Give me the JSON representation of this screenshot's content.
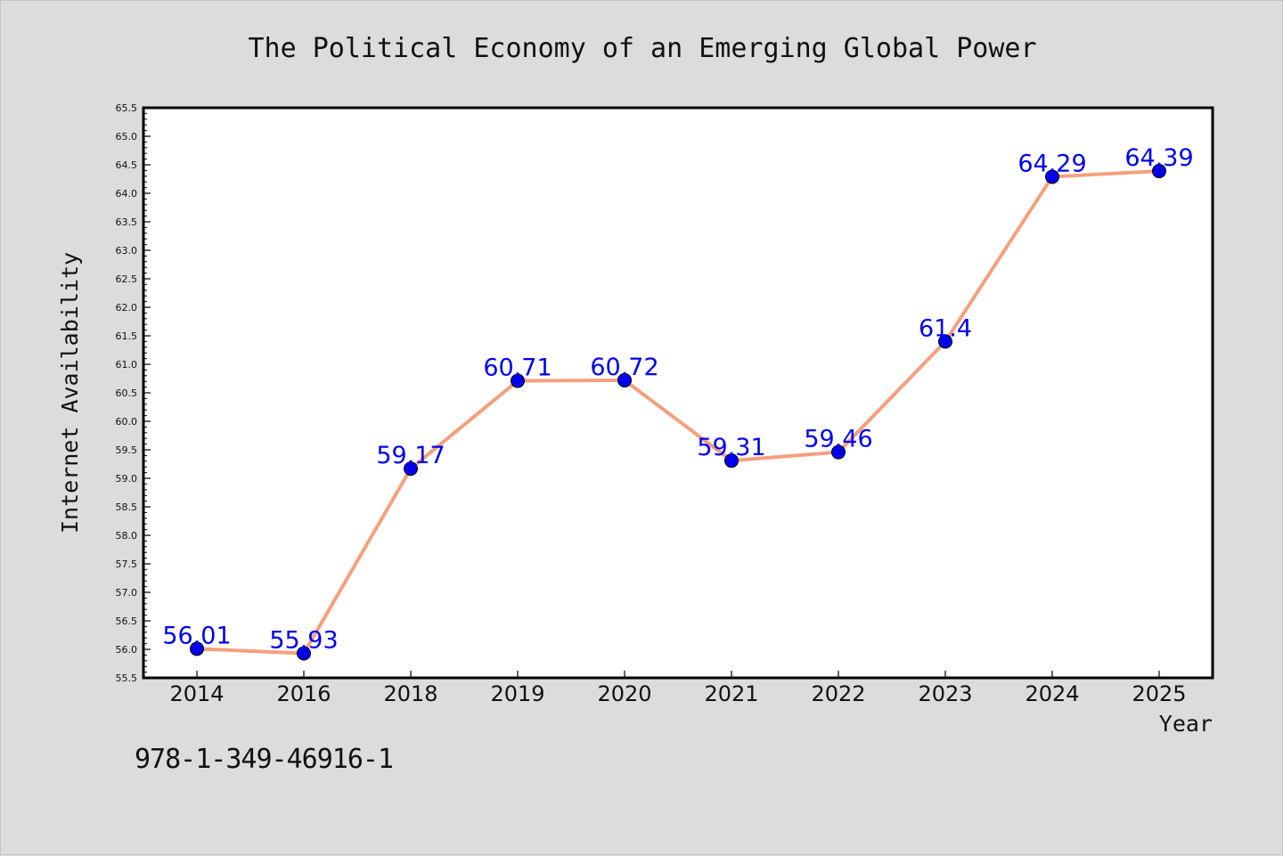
{
  "chart_data": {
    "type": "line",
    "title": "The Political Economy of an Emerging Global Power",
    "xlabel": "Year",
    "ylabel": "Internet Availability",
    "categories": [
      "2014",
      "2016",
      "2018",
      "2019",
      "2020",
      "2021",
      "2022",
      "2023",
      "2024",
      "2025"
    ],
    "series": [
      {
        "values": [
          56.01,
          55.93,
          59.17,
          60.71,
          60.72,
          59.31,
          59.46,
          61.4,
          64.29,
          64.39
        ],
        "labels": [
          "56.01",
          "55.93",
          "59.17",
          "60.71",
          "60.72",
          "59.31",
          "59.46",
          "61.4",
          "64.29",
          "64.39"
        ]
      }
    ],
    "ylim": [
      55.5,
      65.5
    ],
    "ytick_step": 0.5,
    "grid": false,
    "legend": "none",
    "colors": {
      "line": "#f4a07e",
      "marker": "#0000ee",
      "label": "#0000ee",
      "plot_bg": "#ffffff",
      "page_bg": "#dcdcdc"
    }
  },
  "footer": {
    "isbn": "978-1-349-46916-1"
  }
}
